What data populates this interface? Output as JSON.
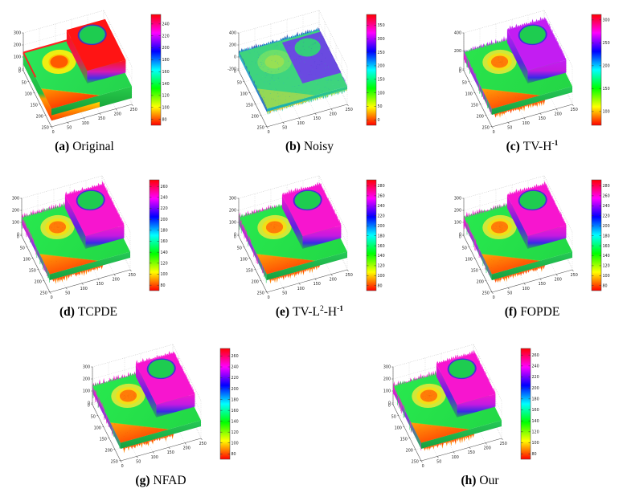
{
  "figure": {
    "background": "#ffffff",
    "description_of_visual": "grid of eight 3D surface plots with HSV colorbars"
  },
  "colormap": {
    "name": "hsv",
    "stops": [
      "#ff0000",
      "#ffff00",
      "#00ff00",
      "#00ffff",
      "#0000ff",
      "#ff00ff",
      "#ff0000"
    ]
  },
  "scene": {
    "base_plateau_value": 150,
    "left_crater_outer_value": 110,
    "left_crater_inner_value": 80,
    "right_block_value": 255,
    "block_hole_value": 150,
    "front_triangle_value": 90
  },
  "palettes": {
    "original": {
      "top1": "#2ce658",
      "top2": "#24d44c",
      "block": "#ff1414",
      "hole": "#1ecc50",
      "rim": "#2434d8",
      "craterOuter": "#eeee12",
      "craterMid": "#ffc400",
      "craterInner": "#ff5a00",
      "tri1": "#ff9800",
      "tri2": "#ff4000",
      "backStripe": "#ff2020",
      "ledge1": "#ffd800",
      "ledge2": "#ff8000",
      "ledge3": "#ff3c00"
    },
    "noisy": {
      "top1": "#3ed47e",
      "top2": "#38c874",
      "block": "#6a4ae0",
      "hole": "#34cc7c",
      "craterOuter": "#74e066",
      "craterInner": "#9ce052",
      "tri1": "#aad84c",
      "spikeA": "#2830a8",
      "spikeB": "#10b8d0",
      "spikeL": "#2048b8",
      "spikeR": "#5838d0",
      "fringe1": "#18c8a0",
      "fringe2": "#a8e040",
      "fringe3": "#ffb020",
      "speckles": [
        "#28c8a8",
        "#34a8d8",
        "#48e088",
        "#2888c8"
      ],
      "blockSpeckles": [
        "#7a30e0",
        "#4840d8",
        "#28b8a0"
      ]
    },
    "restored": {
      "top1": "#28e84e",
      "top2": "#22d846",
      "block": "#f715cf",
      "hole": "#1ecc50",
      "rim": "#2a30d8",
      "craterOuter": "#cfe83a",
      "craterMid": "#f2df16",
      "craterInner": "#ff7c08",
      "tri1": "#ffa008",
      "tri2": "#ff5404",
      "spike2": "#28d050",
      "fringe1": "#ff8808",
      "fringe2": "#ff4404",
      "craterDots": [
        "#ff5c00",
        "#e87010"
      ],
      "triDots": [
        "#ff6a00",
        "#e85800"
      ]
    },
    "restored_purple": {
      "top1": "#2ae44c",
      "top2": "#24d646",
      "block": "#c31df2",
      "hole": "#1ecc50",
      "rim": "#2a30d8",
      "craterOuter": "#cfe83a",
      "craterMid": "#f2df16",
      "craterInner": "#ff7c08",
      "tri1": "#ffa008",
      "tri2": "#ff5404",
      "spike2": "#28d050",
      "fringe1": "#ff8808",
      "fringe2": "#ff4404",
      "craterDots": [
        "#ff5c00",
        "#e87010"
      ],
      "triDots": [
        "#ff6a00",
        "#e85800"
      ]
    }
  },
  "chart_data": [
    {
      "id": "a",
      "type": "3d-surface",
      "label": "(a)",
      "method_text": "Original",
      "method_segments": [
        {
          "t": "Original"
        }
      ],
      "x_ticks": [
        0,
        50,
        100,
        150,
        200,
        250
      ],
      "y_ticks": [
        0,
        50,
        100,
        150,
        200,
        250
      ],
      "z_ticks": [
        0,
        100,
        200,
        300
      ],
      "colorbar": {
        "range": [
          70,
          256
        ],
        "ticks": [
          80,
          100,
          120,
          140,
          160,
          180,
          200,
          220,
          240
        ]
      },
      "style": "original"
    },
    {
      "id": "b",
      "type": "3d-surface",
      "label": "(b)",
      "method_text": "Noisy",
      "method_segments": [
        {
          "t": "Noisy"
        }
      ],
      "x_ticks": [
        0,
        50,
        100,
        150,
        200,
        250
      ],
      "y_ticks": [
        0,
        50,
        100,
        150,
        200,
        250
      ],
      "z_ticks": [
        -200,
        0,
        200,
        400
      ],
      "colorbar": {
        "range": [
          -20,
          390
        ],
        "ticks": [
          0,
          50,
          100,
          150,
          200,
          250,
          300,
          350
        ]
      },
      "style": "noisy"
    },
    {
      "id": "c",
      "type": "3d-surface",
      "label": "(c)",
      "method_text": "TV-H⁻¹",
      "method_segments": [
        {
          "t": "TV-H"
        },
        {
          "t": "-1",
          "sup": true,
          "bold": true
        }
      ],
      "x_ticks": [
        0,
        50,
        100,
        150,
        200,
        250
      ],
      "y_ticks": [
        0,
        50,
        100,
        150,
        200,
        250
      ],
      "z_ticks": [
        0,
        200,
        400
      ],
      "colorbar": {
        "range": [
          70,
          312
        ],
        "ticks": [
          100,
          150,
          200,
          250,
          300
        ]
      },
      "style": "restored_purple"
    },
    {
      "id": "d",
      "type": "3d-surface",
      "label": "(d)",
      "method_text": "TCPDE",
      "method_segments": [
        {
          "t": "TCPDE"
        }
      ],
      "x_ticks": [
        0,
        50,
        100,
        150,
        200,
        250
      ],
      "y_ticks": [
        0,
        50,
        100,
        150,
        200,
        250
      ],
      "z_ticks": [
        0,
        100,
        200,
        300
      ],
      "colorbar": {
        "range": [
          70,
          272
        ],
        "ticks": [
          80,
          100,
          120,
          140,
          160,
          180,
          200,
          220,
          240,
          260
        ]
      },
      "style": "restored"
    },
    {
      "id": "e",
      "type": "3d-surface",
      "label": "(e)",
      "method_text": "TV-L²-H⁻¹",
      "method_segments": [
        {
          "t": "TV-L"
        },
        {
          "t": "2",
          "sup": true
        },
        {
          "t": "-H"
        },
        {
          "t": "-1",
          "sup": true,
          "bold": true
        }
      ],
      "x_ticks": [
        0,
        50,
        100,
        150,
        200,
        250
      ],
      "y_ticks": [
        0,
        50,
        100,
        150,
        200,
        250
      ],
      "z_ticks": [
        0,
        100,
        200,
        300
      ],
      "colorbar": {
        "range": [
          70,
          292
        ],
        "ticks": [
          80,
          100,
          120,
          140,
          160,
          180,
          200,
          220,
          240,
          260,
          280
        ]
      },
      "style": "restored"
    },
    {
      "id": "f",
      "type": "3d-surface",
      "label": "(f)",
      "method_text": "FOPDE",
      "method_segments": [
        {
          "t": "FOPDE"
        }
      ],
      "x_ticks": [
        0,
        50,
        100,
        150,
        200,
        250
      ],
      "y_ticks": [
        0,
        50,
        100,
        150,
        200,
        250
      ],
      "z_ticks": [
        0,
        100,
        200,
        300
      ],
      "colorbar": {
        "range": [
          70,
          292
        ],
        "ticks": [
          80,
          100,
          120,
          140,
          160,
          180,
          200,
          220,
          240,
          260,
          280
        ]
      },
      "style": "restored"
    },
    {
      "id": "g",
      "type": "3d-surface",
      "label": "(g)",
      "method_text": "NFAD",
      "method_segments": [
        {
          "t": "NFAD"
        }
      ],
      "x_ticks": [
        0,
        50,
        100,
        150,
        200,
        250
      ],
      "y_ticks": [
        0,
        50,
        100,
        150,
        200,
        250
      ],
      "z_ticks": [
        0,
        100,
        200,
        300
      ],
      "colorbar": {
        "range": [
          70,
          274
        ],
        "ticks": [
          80,
          100,
          120,
          140,
          160,
          180,
          200,
          220,
          240,
          260
        ]
      },
      "style": "restored"
    },
    {
      "id": "h",
      "type": "3d-surface",
      "label": "(h)",
      "method_text": "Our",
      "method_segments": [
        {
          "t": "Our"
        }
      ],
      "x_ticks": [
        0,
        50,
        100,
        150,
        200,
        250
      ],
      "y_ticks": [
        0,
        50,
        100,
        150,
        200,
        250
      ],
      "z_ticks": [
        0,
        100,
        200,
        300
      ],
      "colorbar": {
        "range": [
          70,
          272
        ],
        "ticks": [
          80,
          100,
          120,
          140,
          160,
          180,
          200,
          220,
          240,
          260
        ]
      },
      "style": "restored"
    }
  ]
}
